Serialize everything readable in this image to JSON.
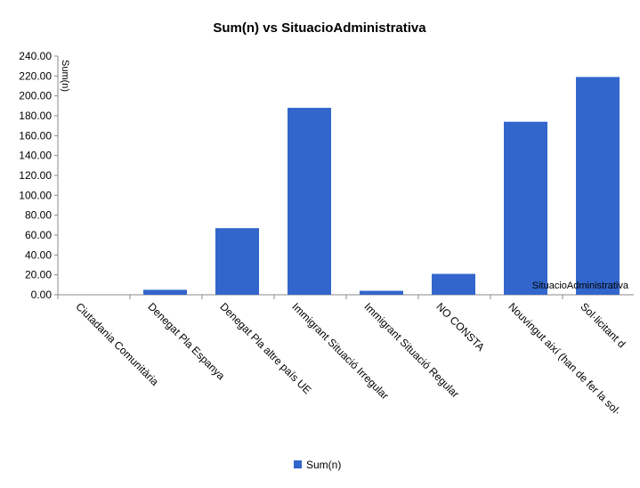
{
  "chart_data": {
    "type": "bar",
    "title": "Sum(n) vs SituacioAdministrativa",
    "xlabel": "SituacioAdministrativa",
    "ylabel": "Sum(n)",
    "ylim": [
      0,
      240
    ],
    "yticks": [
      "0.00",
      "20.00",
      "40.00",
      "60.00",
      "80.00",
      "100.00",
      "120.00",
      "140.00",
      "160.00",
      "180.00",
      "200.00",
      "220.00",
      "240.00"
    ],
    "categories": [
      "Ciutadania Comunitària",
      "Denegat Pla Espanya",
      "Denegat Pla altre país UE",
      "Immigrant Situació Irregular",
      "Immigrant Situació Regular",
      "NO CONSTA",
      "Nouvingut així (han de fer la sol·",
      "Sol·licitant d"
    ],
    "series": [
      {
        "name": "Sum(n)",
        "values": [
          0,
          5,
          67,
          188,
          4,
          21,
          174,
          219
        ]
      }
    ],
    "colors": {
      "bar": "#3366cc",
      "axis": "#888888"
    },
    "legend": "bottom",
    "grid": false
  }
}
